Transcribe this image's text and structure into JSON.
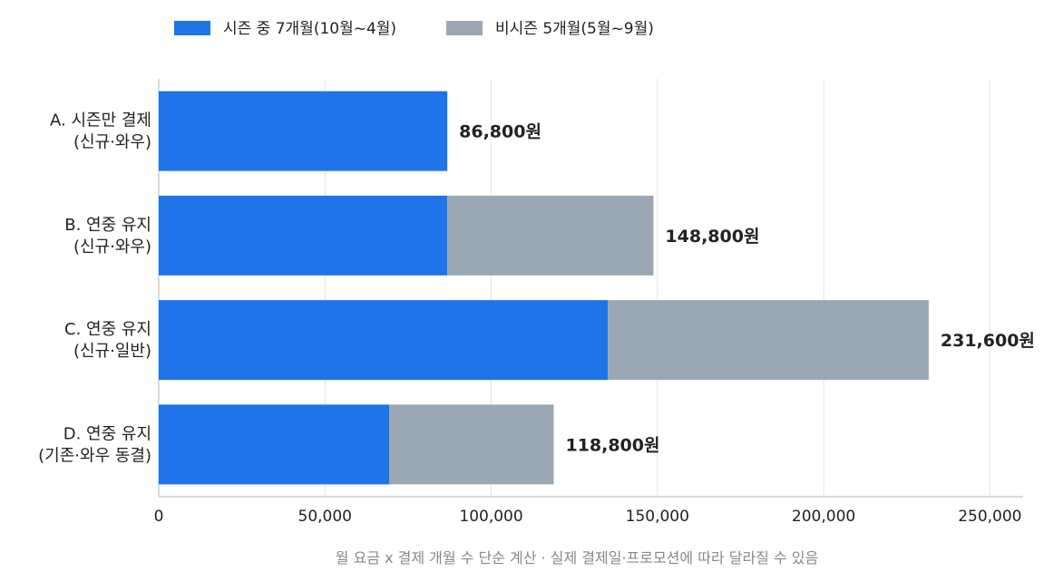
{
  "chart_data": {
    "type": "bar",
    "orientation": "horizontal",
    "stacked": true,
    "categories": [
      [
        "A. 시즌만 결제",
        "(신규·와우)"
      ],
      [
        "B. 연중 유지",
        "(신규·와우)"
      ],
      [
        "C. 연중 유지",
        "(신규·일반)"
      ],
      [
        "D. 연중 유지",
        "(기존·와우 동결)"
      ]
    ],
    "series": [
      {
        "name": "시즌 중 7개월(10월~4월)",
        "color": "#1e74e8",
        "values": [
          86800,
          86800,
          135100,
          69300
        ]
      },
      {
        "name": "비시즌 5개월(5월~9월)",
        "color": "#9ba8b4",
        "values": [
          0,
          62000,
          96500,
          49500
        ]
      }
    ],
    "totals": [
      "86,800원",
      "148,800원",
      "231,600원",
      "118,800원"
    ],
    "xlim": [
      0,
      260000
    ],
    "xticks": [
      0,
      50000,
      100000,
      150000,
      200000,
      250000
    ],
    "xtick_labels": [
      "0",
      "50,000",
      "100,000",
      "150,000",
      "200,000",
      "250,000"
    ],
    "grid": true,
    "legend_position": "top-left",
    "footnote": "월 요금 x 결제 개월 수 단순 계산 · 실제 결제일·프로모션에 따라 달라질 수 있음"
  }
}
